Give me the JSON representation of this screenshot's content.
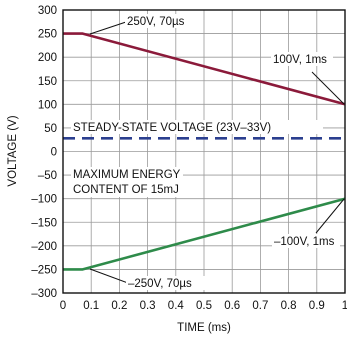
{
  "chart_data": {
    "type": "line",
    "title": "",
    "xlabel": "TIME (ms)",
    "ylabel": "VOLTAGE (V)",
    "xlim": [
      0,
      1
    ],
    "ylim": [
      -300,
      300
    ],
    "x_ticks": [
      0,
      0.1,
      0.2,
      0.3,
      0.4,
      0.5,
      0.6,
      0.7,
      0.8,
      0.9,
      1
    ],
    "x_tick_labels": [
      "0",
      "0.1",
      "0.2",
      "0.3",
      "0.4",
      "0.5",
      "0.6",
      "0.7",
      "0.8",
      "0.9",
      "1"
    ],
    "y_ticks": [
      300,
      250,
      200,
      150,
      100,
      50,
      0,
      -50,
      -100,
      -150,
      -200,
      -250,
      -300
    ],
    "y_tick_labels": [
      "300",
      "250",
      "200",
      "150",
      "100",
      "50",
      "0",
      "–50",
      "–100",
      "–150",
      "–200",
      "–250",
      "–300"
    ],
    "grid": true,
    "series": [
      {
        "name": "",
        "color": "#8b1a3a",
        "style": "solid",
        "points": [
          [
            0,
            250
          ],
          [
            0.07,
            250
          ],
          [
            1,
            100
          ]
        ]
      },
      {
        "name": "",
        "color": "#2e8b4a",
        "style": "solid",
        "points": [
          [
            0,
            -250
          ],
          [
            0.07,
            -250
          ],
          [
            1,
            -100
          ]
        ]
      },
      {
        "name": "",
        "color": "#2b3f8f",
        "style": "dashed",
        "points": [
          [
            0,
            28
          ],
          [
            1,
            28
          ]
        ]
      }
    ],
    "annotations": {
      "pos_start": "250V, 70µs",
      "pos_end": "100V, 1ms",
      "steady_state": "STEADY-STATE VOLTAGE (23V–33V)",
      "energy_line1": "MAXIMUM ENERGY",
      "energy_line2": "CONTENT OF 15mJ",
      "neg_end": "–100V, 1ms",
      "neg_start": "–250V, 70µs"
    }
  }
}
